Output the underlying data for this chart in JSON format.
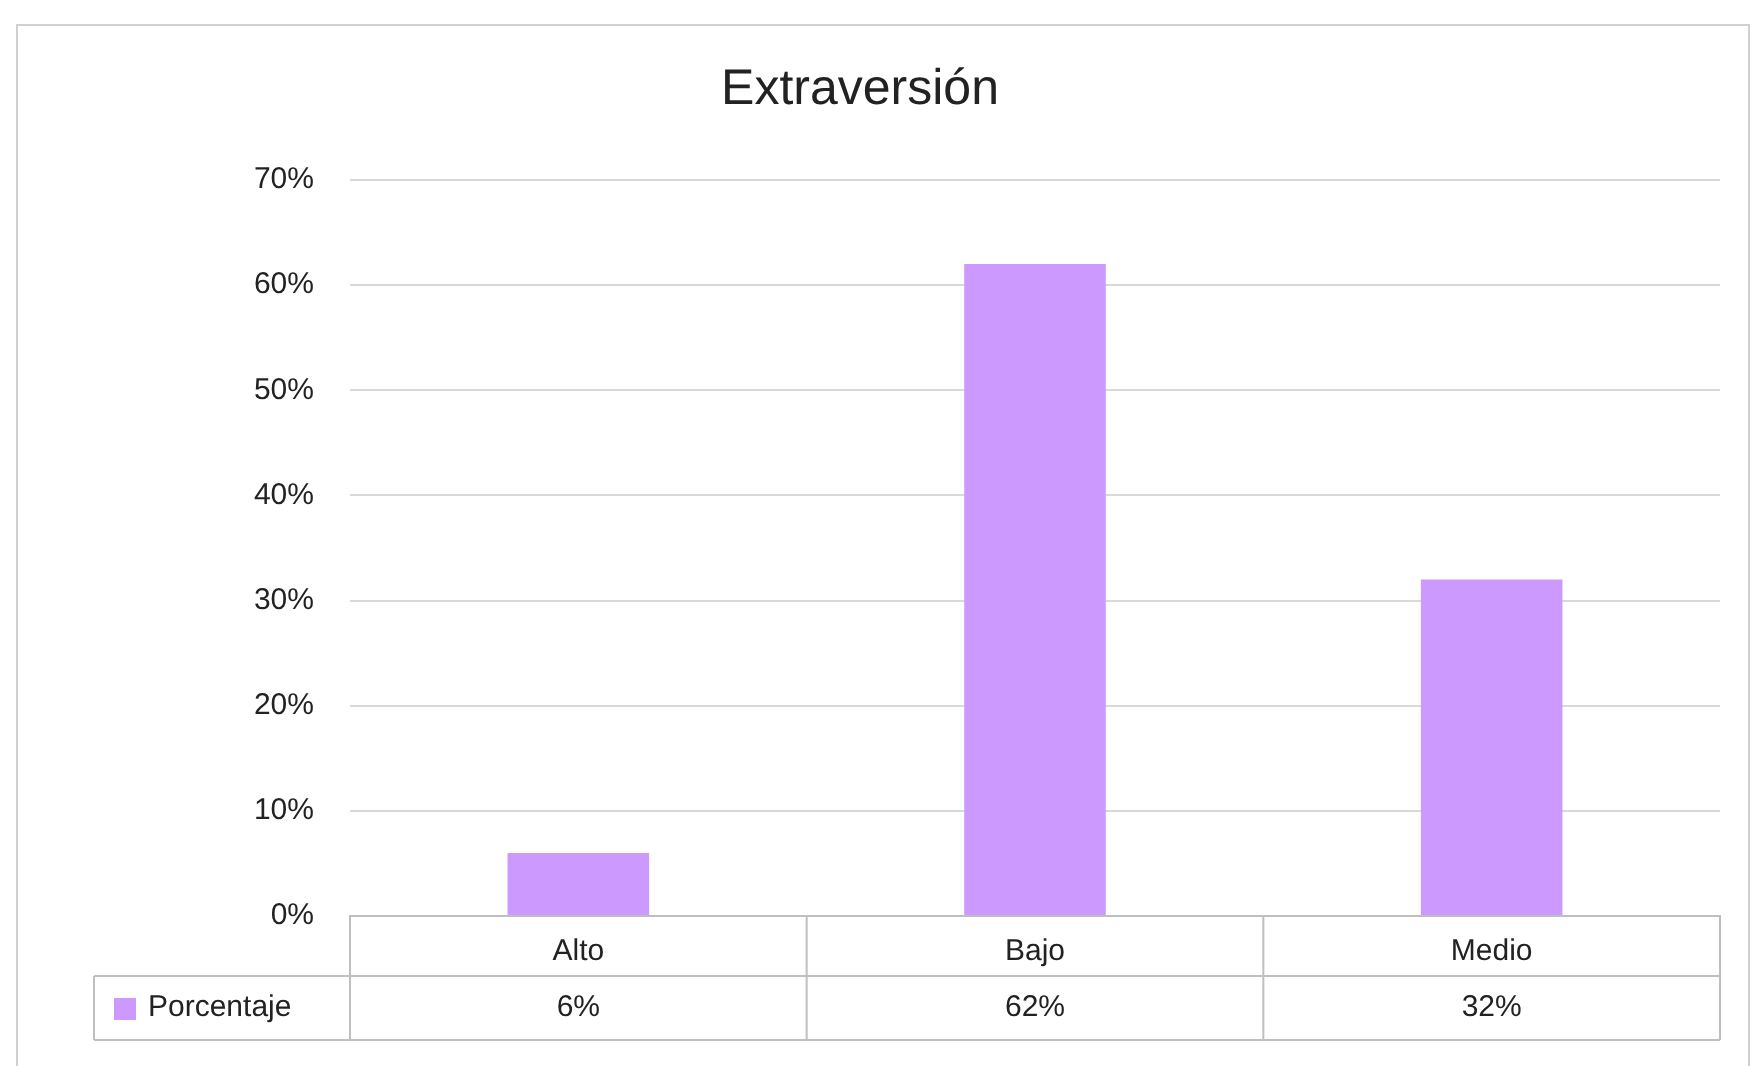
{
  "chart_data": {
    "type": "bar",
    "title": "Extraversión",
    "categories": [
      "Alto",
      "Bajo",
      "Medio"
    ],
    "series": [
      {
        "name": "Porcentaje",
        "color": "#cc99ff",
        "values": [
          6,
          62,
          32
        ],
        "value_labels": [
          "6%",
          "62%",
          "32%"
        ]
      }
    ],
    "ylim": [
      0,
      70
    ],
    "yticks": [
      {
        "value": 0,
        "label": "0%"
      },
      {
        "value": 10,
        "label": "10%"
      },
      {
        "value": 20,
        "label": "20%"
      },
      {
        "value": 30,
        "label": "30%"
      },
      {
        "value": 40,
        "label": "40%"
      },
      {
        "value": 50,
        "label": "50%"
      },
      {
        "value": 60,
        "label": "60%"
      },
      {
        "value": 70,
        "label": "70%"
      }
    ],
    "grid": "y",
    "legend": "bottom"
  }
}
